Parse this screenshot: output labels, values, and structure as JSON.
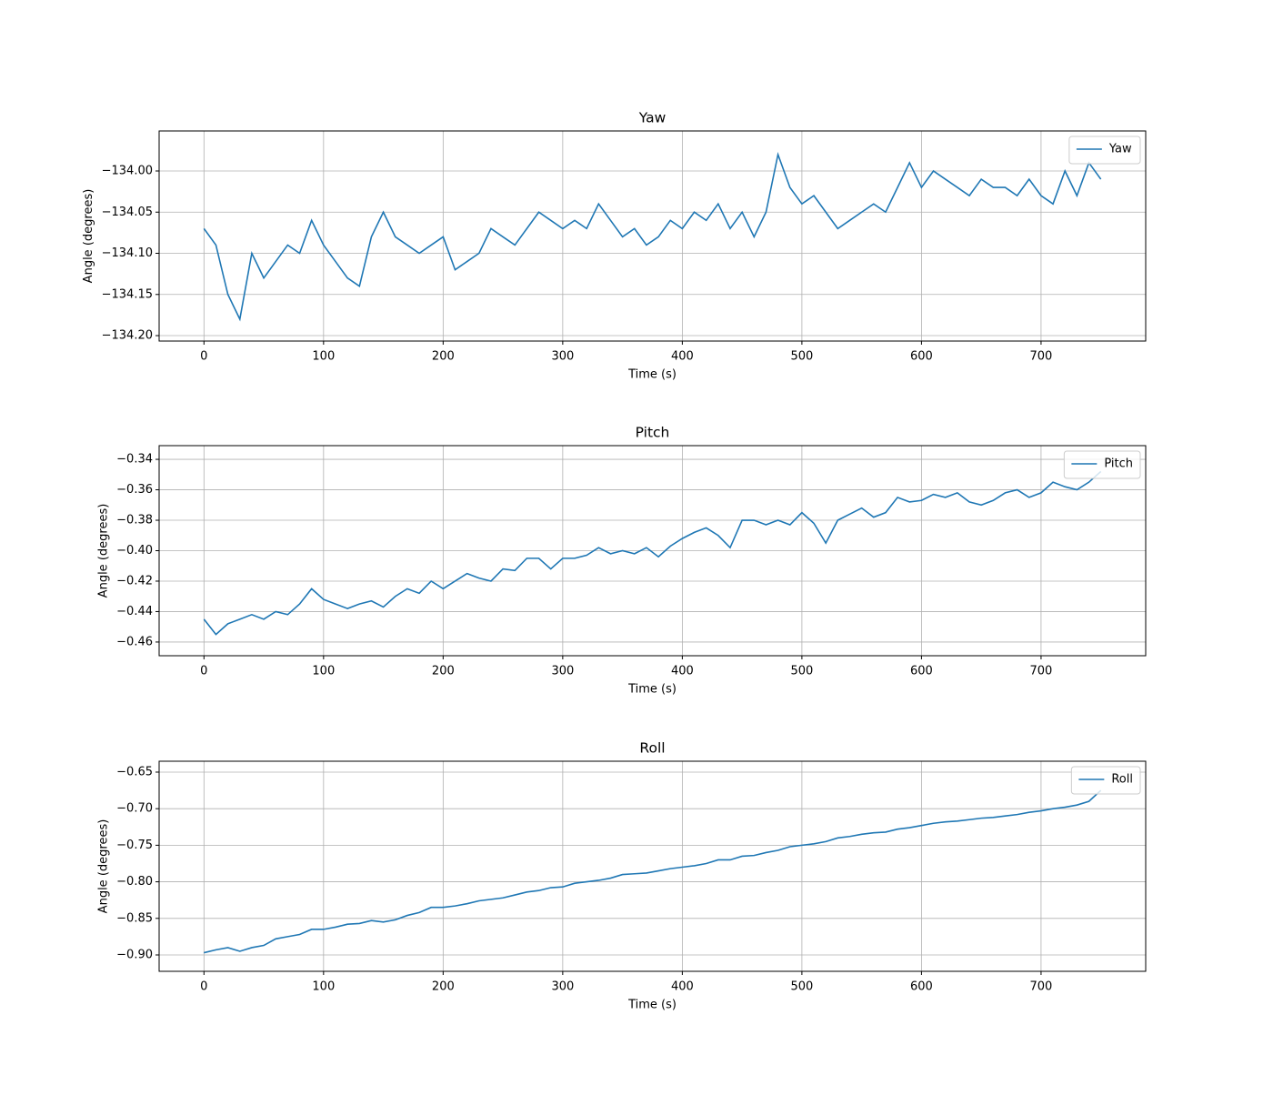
{
  "chart_data": [
    {
      "type": "line",
      "title": "Yaw",
      "x_label": "Time (s)",
      "y_label": "Angle (degrees)",
      "x": [
        0,
        10,
        20,
        30,
        40,
        50,
        60,
        70,
        80,
        90,
        100,
        110,
        120,
        130,
        140,
        150,
        160,
        170,
        180,
        190,
        200,
        210,
        220,
        230,
        240,
        250,
        260,
        270,
        280,
        290,
        300,
        310,
        320,
        330,
        340,
        350,
        360,
        370,
        380,
        390,
        400,
        410,
        420,
        430,
        440,
        450,
        460,
        470,
        480,
        490,
        500,
        510,
        520,
        530,
        540,
        550,
        560,
        570,
        580,
        590,
        600,
        610,
        620,
        630,
        640,
        650,
        660,
        670,
        680,
        690,
        700,
        710,
        720,
        730,
        740,
        750
      ],
      "series": [
        {
          "name": "Yaw",
          "color": "#1f77b4",
          "values": [
            -134.07,
            -134.09,
            -134.15,
            -134.18,
            -134.1,
            -134.13,
            -134.11,
            -134.09,
            -134.1,
            -134.06,
            -134.09,
            -134.11,
            -134.13,
            -134.14,
            -134.08,
            -134.05,
            -134.08,
            -134.09,
            -134.1,
            -134.09,
            -134.08,
            -134.12,
            -134.11,
            -134.1,
            -134.07,
            -134.08,
            -134.09,
            -134.07,
            -134.05,
            -134.06,
            -134.07,
            -134.06,
            -134.07,
            -134.04,
            -134.06,
            -134.08,
            -134.07,
            -134.09,
            -134.08,
            -134.06,
            -134.07,
            -134.05,
            -134.06,
            -134.04,
            -134.07,
            -134.05,
            -134.08,
            -134.05,
            -133.98,
            -134.02,
            -134.04,
            -134.03,
            -134.05,
            -134.07,
            -134.06,
            -134.05,
            -134.04,
            -134.05,
            -134.02,
            -133.99,
            -134.02,
            -134.0,
            -134.01,
            -134.02,
            -134.03,
            -134.01,
            -134.02,
            -134.02,
            -134.03,
            -134.01,
            -134.03,
            -134.04,
            -134.0,
            -134.03,
            -133.99,
            -134.01
          ]
        }
      ],
      "xlim": [
        -37.5,
        787.5
      ],
      "ylim": [
        -134.2066,
        -133.9514
      ],
      "xticks": [
        0,
        100,
        200,
        300,
        400,
        500,
        600,
        700
      ],
      "yticks": [
        {
          "value": -134.2,
          "label": "−134.20"
        },
        {
          "value": -134.15,
          "label": "−134.15"
        },
        {
          "value": -134.1,
          "label": "−134.10"
        },
        {
          "value": -134.05,
          "label": "−134.05"
        },
        {
          "value": -134.0,
          "label": "−134.00"
        }
      ],
      "grid": true,
      "legend": "upper right"
    },
    {
      "type": "line",
      "title": "Pitch",
      "x_label": "Time (s)",
      "y_label": "Angle (degrees)",
      "x": [
        0,
        10,
        20,
        30,
        40,
        50,
        60,
        70,
        80,
        90,
        100,
        110,
        120,
        130,
        140,
        150,
        160,
        170,
        180,
        190,
        200,
        210,
        220,
        230,
        240,
        250,
        260,
        270,
        280,
        290,
        300,
        310,
        320,
        330,
        340,
        350,
        360,
        370,
        380,
        390,
        400,
        410,
        420,
        430,
        440,
        450,
        460,
        470,
        480,
        490,
        500,
        510,
        520,
        530,
        540,
        550,
        560,
        570,
        580,
        590,
        600,
        610,
        620,
        630,
        640,
        650,
        660,
        670,
        680,
        690,
        700,
        710,
        720,
        730,
        740,
        750
      ],
      "series": [
        {
          "name": "Pitch",
          "color": "#1f77b4",
          "values": [
            -0.445,
            -0.455,
            -0.448,
            -0.445,
            -0.442,
            -0.445,
            -0.44,
            -0.442,
            -0.435,
            -0.425,
            -0.432,
            -0.435,
            -0.438,
            -0.435,
            -0.433,
            -0.437,
            -0.43,
            -0.425,
            -0.428,
            -0.42,
            -0.425,
            -0.42,
            -0.415,
            -0.418,
            -0.42,
            -0.412,
            -0.413,
            -0.405,
            -0.405,
            -0.412,
            -0.405,
            -0.405,
            -0.403,
            -0.398,
            -0.402,
            -0.4,
            -0.402,
            -0.398,
            -0.404,
            -0.397,
            -0.392,
            -0.388,
            -0.385,
            -0.39,
            -0.398,
            -0.38,
            -0.38,
            -0.383,
            -0.38,
            -0.383,
            -0.375,
            -0.382,
            -0.395,
            -0.38,
            -0.376,
            -0.372,
            -0.378,
            -0.375,
            -0.365,
            -0.368,
            -0.367,
            -0.363,
            -0.365,
            -0.362,
            -0.368,
            -0.37,
            -0.367,
            -0.362,
            -0.36,
            -0.365,
            -0.362,
            -0.355,
            -0.358,
            -0.36,
            -0.355,
            -0.348
          ]
        }
      ],
      "xlim": [
        -37.5,
        787.5
      ],
      "ylim": [
        -0.469,
        -0.331
      ],
      "xticks": [
        0,
        100,
        200,
        300,
        400,
        500,
        600,
        700
      ],
      "yticks": [
        {
          "value": -0.46,
          "label": "−0.46"
        },
        {
          "value": -0.44,
          "label": "−0.44"
        },
        {
          "value": -0.42,
          "label": "−0.42"
        },
        {
          "value": -0.4,
          "label": "−0.40"
        },
        {
          "value": -0.38,
          "label": "−0.38"
        },
        {
          "value": -0.36,
          "label": "−0.36"
        },
        {
          "value": -0.34,
          "label": "−0.34"
        }
      ],
      "grid": true,
      "legend": "upper right"
    },
    {
      "type": "line",
      "title": "Roll",
      "x_label": "Time (s)",
      "y_label": "Angle (degrees)",
      "x": [
        0,
        10,
        20,
        30,
        40,
        50,
        60,
        70,
        80,
        90,
        100,
        110,
        120,
        130,
        140,
        150,
        160,
        170,
        180,
        190,
        200,
        210,
        220,
        230,
        240,
        250,
        260,
        270,
        280,
        290,
        300,
        310,
        320,
        330,
        340,
        350,
        360,
        370,
        380,
        390,
        400,
        410,
        420,
        430,
        440,
        450,
        460,
        470,
        480,
        490,
        500,
        510,
        520,
        530,
        540,
        550,
        560,
        570,
        580,
        590,
        600,
        610,
        620,
        630,
        640,
        650,
        660,
        670,
        680,
        690,
        700,
        710,
        720,
        730,
        740,
        750
      ],
      "series": [
        {
          "name": "Roll",
          "color": "#1f77b4",
          "values": [
            -0.897,
            -0.893,
            -0.89,
            -0.895,
            -0.89,
            -0.887,
            -0.878,
            -0.875,
            -0.872,
            -0.865,
            -0.865,
            -0.862,
            -0.858,
            -0.857,
            -0.853,
            -0.855,
            -0.852,
            -0.846,
            -0.842,
            -0.835,
            -0.835,
            -0.833,
            -0.83,
            -0.826,
            -0.824,
            -0.822,
            -0.818,
            -0.814,
            -0.812,
            -0.808,
            -0.807,
            -0.802,
            -0.8,
            -0.798,
            -0.795,
            -0.79,
            -0.789,
            -0.788,
            -0.785,
            -0.782,
            -0.78,
            -0.778,
            -0.775,
            -0.77,
            -0.77,
            -0.765,
            -0.764,
            -0.76,
            -0.757,
            -0.752,
            -0.75,
            -0.748,
            -0.745,
            -0.74,
            -0.738,
            -0.735,
            -0.733,
            -0.732,
            -0.728,
            -0.726,
            -0.723,
            -0.72,
            -0.718,
            -0.717,
            -0.715,
            -0.713,
            -0.712,
            -0.71,
            -0.708,
            -0.705,
            -0.703,
            -0.7,
            -0.698,
            -0.695,
            -0.69,
            -0.675
          ]
        }
      ],
      "xlim": [
        -37.5,
        787.5
      ],
      "ylim": [
        -0.9224,
        -0.6351
      ],
      "xticks": [
        0,
        100,
        200,
        300,
        400,
        500,
        600,
        700
      ],
      "yticks": [
        {
          "value": -0.9,
          "label": "−0.90"
        },
        {
          "value": -0.85,
          "label": "−0.85"
        },
        {
          "value": -0.8,
          "label": "−0.80"
        },
        {
          "value": -0.75,
          "label": "−0.75"
        },
        {
          "value": -0.7,
          "label": "−0.70"
        },
        {
          "value": -0.65,
          "label": "−0.65"
        }
      ],
      "grid": true,
      "legend": "upper right"
    }
  ]
}
